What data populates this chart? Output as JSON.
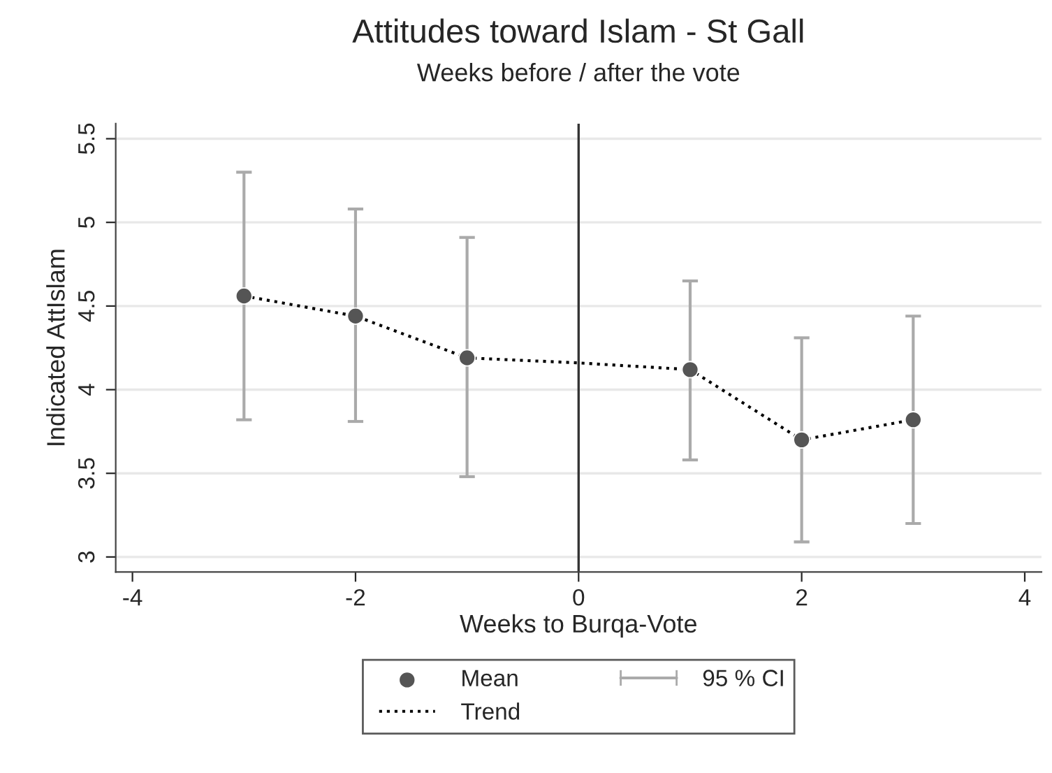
{
  "chart_data": {
    "type": "scatter",
    "title": "Attitudes toward Islam - St Gall",
    "subtitle": "Weeks before / after the vote",
    "xlabel": "Weeks to Burqa-Vote",
    "ylabel": "Indicated AttIslam",
    "x": [
      -3,
      -2,
      -1,
      1,
      2,
      3
    ],
    "series": [
      {
        "name": "Mean",
        "color": "#555555",
        "values": [
          4.56,
          4.44,
          4.19,
          4.12,
          3.7,
          3.82
        ],
        "errors": [
          [
            3.82,
            5.3
          ],
          [
            3.81,
            5.08
          ],
          [
            3.48,
            4.91
          ],
          [
            3.58,
            4.65
          ],
          [
            3.09,
            4.31
          ],
          [
            3.2,
            4.44
          ]
        ]
      },
      {
        "name": "Trend",
        "type": "line",
        "color": "#000000",
        "line_style": "dotted",
        "marker": "none",
        "x": [
          -3,
          -2,
          -1,
          0,
          1,
          2,
          3
        ],
        "values": [
          4.56,
          4.44,
          4.19,
          4.16,
          4.12,
          3.7,
          3.82
        ]
      }
    ],
    "annotations": [
      "95 % CI"
    ],
    "ref_lines": [
      {
        "axis": "x",
        "value": 0,
        "color": "#333333"
      }
    ],
    "xlim": [
      -4.15,
      4.15
    ],
    "ylim": [
      2.91,
      5.59
    ],
    "xticks": [
      -4,
      -2,
      0,
      2,
      4
    ],
    "yticks": [
      3,
      3.5,
      4,
      4.5,
      5,
      5.5
    ],
    "grid": "y",
    "legend": "bottom",
    "marker": "circle"
  }
}
